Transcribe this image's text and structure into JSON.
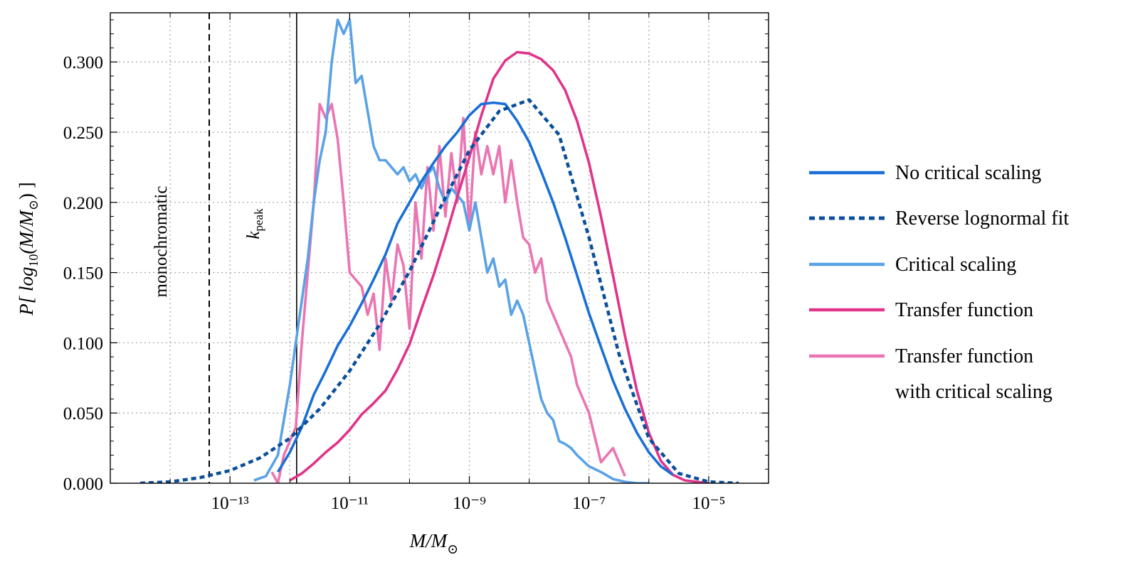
{
  "chart_data": {
    "type": "line",
    "xscale": "log",
    "xlim": [
      1e-15,
      0.0001
    ],
    "ylim": [
      0,
      0.335
    ],
    "grid": true,
    "xlabel": "M/M⊙",
    "ylabel": "P[ log10(M/M⊙) ]",
    "xticks": [
      1e-13,
      1e-11,
      1e-09,
      1e-07,
      1e-05
    ],
    "xtick_labels": [
      "10⁻¹³",
      "10⁻¹¹",
      "10⁻⁹",
      "10⁻⁷",
      "10⁻⁵"
    ],
    "yticks": [
      0,
      0.05,
      0.1,
      0.15,
      0.2,
      0.25,
      0.3
    ],
    "ytick_labels": [
      "0.000",
      "0.050",
      "0.100",
      "0.150",
      "0.200",
      "0.250",
      "0.300"
    ],
    "vlines": [
      {
        "name": "monochromatic",
        "x": 4.5e-14,
        "style": "dashed",
        "label": "monochromatic"
      },
      {
        "name": "k-peak",
        "x": 1.3e-12,
        "style": "solid",
        "label_main": "k",
        "label_sub": "peak"
      }
    ],
    "legend_position": "right",
    "series": [
      {
        "name": "No critical scaling",
        "color": "#1a6fd6",
        "dash": "solid",
        "log10_x": [
          -12.2,
          -12.0,
          -11.8,
          -11.6,
          -11.4,
          -11.2,
          -11.0,
          -10.8,
          -10.6,
          -10.4,
          -10.2,
          -10.0,
          -9.8,
          -9.6,
          -9.4,
          -9.2,
          -9.0,
          -8.8,
          -8.6,
          -8.4,
          -8.2,
          -8.0,
          -7.8,
          -7.6,
          -7.4,
          -7.2,
          -7.0,
          -6.8,
          -6.6,
          -6.4,
          -6.2,
          -6.0,
          -5.8,
          -5.6
        ],
        "y": [
          0.008,
          0.022,
          0.04,
          0.063,
          0.08,
          0.098,
          0.112,
          0.128,
          0.145,
          0.163,
          0.185,
          0.2,
          0.215,
          0.228,
          0.24,
          0.25,
          0.262,
          0.27,
          0.271,
          0.27,
          0.258,
          0.243,
          0.222,
          0.2,
          0.175,
          0.148,
          0.121,
          0.097,
          0.073,
          0.053,
          0.036,
          0.022,
          0.012,
          0.006
        ]
      },
      {
        "name": "Reverse lognormal fit",
        "color": "#0b4f9c",
        "dash": "dotted",
        "log10_x": [
          -14.5,
          -14.0,
          -13.5,
          -13.0,
          -12.5,
          -12.0,
          -11.5,
          -11.0,
          -10.5,
          -10.0,
          -9.5,
          -9.0,
          -8.5,
          -8.0,
          -7.5,
          -7.0,
          -6.5,
          -6.0,
          -5.5,
          -5.0,
          -4.5
        ],
        "y": [
          0.0,
          0.001,
          0.004,
          0.009,
          0.018,
          0.032,
          0.053,
          0.08,
          0.113,
          0.151,
          0.195,
          0.237,
          0.265,
          0.273,
          0.248,
          0.175,
          0.092,
          0.032,
          0.007,
          0.001,
          0.0
        ]
      },
      {
        "name": "Critical scaling",
        "color": "#5aa2e6",
        "dash": "solid",
        "log10_x": [
          -12.6,
          -12.4,
          -12.2,
          -12.0,
          -11.9,
          -11.8,
          -11.7,
          -11.6,
          -11.5,
          -11.4,
          -11.3,
          -11.2,
          -11.1,
          -11.0,
          -10.9,
          -10.8,
          -10.7,
          -10.6,
          -10.5,
          -10.4,
          -10.3,
          -10.2,
          -10.1,
          -10.0,
          -9.9,
          -9.8,
          -9.7,
          -9.6,
          -9.5,
          -9.4,
          -9.3,
          -9.2,
          -9.1,
          -9.0,
          -8.9,
          -8.8,
          -8.7,
          -8.6,
          -8.5,
          -8.4,
          -8.3,
          -8.2,
          -8.1,
          -8.0,
          -7.9,
          -7.8,
          -7.7,
          -7.6,
          -7.5,
          -7.4,
          -7.3,
          -7.2,
          -7.0,
          -6.8,
          -6.6,
          -6.4,
          -6.2,
          -6.0
        ],
        "y": [
          0.002,
          0.005,
          0.02,
          0.07,
          0.1,
          0.13,
          0.16,
          0.2,
          0.23,
          0.25,
          0.3,
          0.33,
          0.32,
          0.33,
          0.285,
          0.29,
          0.265,
          0.24,
          0.23,
          0.23,
          0.225,
          0.22,
          0.225,
          0.215,
          0.22,
          0.21,
          0.22,
          0.225,
          0.21,
          0.2,
          0.21,
          0.205,
          0.2,
          0.18,
          0.2,
          0.175,
          0.15,
          0.16,
          0.14,
          0.145,
          0.12,
          0.13,
          0.12,
          0.1,
          0.08,
          0.06,
          0.05,
          0.045,
          0.03,
          0.028,
          0.025,
          0.02,
          0.012,
          0.008,
          0.003,
          0.001,
          0.0,
          0.0
        ]
      },
      {
        "name": "Transfer function",
        "color": "#e0338a",
        "dash": "solid",
        "log10_x": [
          -12.0,
          -11.8,
          -11.6,
          -11.4,
          -11.2,
          -11.0,
          -10.8,
          -10.6,
          -10.4,
          -10.2,
          -10.0,
          -9.8,
          -9.6,
          -9.4,
          -9.2,
          -9.0,
          -8.8,
          -8.6,
          -8.4,
          -8.2,
          -8.0,
          -7.8,
          -7.6,
          -7.4,
          -7.2,
          -7.0,
          -6.8,
          -6.6,
          -6.4,
          -6.2,
          -6.0,
          -5.8,
          -5.6,
          -5.4,
          -5.2,
          -5.0
        ],
        "y": [
          0.002,
          0.007,
          0.014,
          0.022,
          0.029,
          0.038,
          0.049,
          0.057,
          0.066,
          0.081,
          0.099,
          0.124,
          0.148,
          0.175,
          0.204,
          0.232,
          0.262,
          0.288,
          0.301,
          0.307,
          0.306,
          0.302,
          0.294,
          0.28,
          0.258,
          0.228,
          0.19,
          0.148,
          0.105,
          0.066,
          0.036,
          0.016,
          0.006,
          0.002,
          0.001,
          0.0
        ]
      },
      {
        "name": "Transfer function with critical scaling",
        "color": "#ea75b2",
        "dash": "solid",
        "log10_x": [
          -12.3,
          -12.2,
          -12.1,
          -12.0,
          -11.9,
          -11.8,
          -11.7,
          -11.6,
          -11.5,
          -11.4,
          -11.3,
          -11.2,
          -11.1,
          -11.0,
          -10.9,
          -10.8,
          -10.7,
          -10.6,
          -10.5,
          -10.4,
          -10.3,
          -10.2,
          -10.1,
          -10.0,
          -9.9,
          -9.8,
          -9.7,
          -9.6,
          -9.5,
          -9.4,
          -9.3,
          -9.2,
          -9.1,
          -9.0,
          -8.9,
          -8.8,
          -8.7,
          -8.6,
          -8.5,
          -8.4,
          -8.3,
          -8.2,
          -8.1,
          -8.0,
          -7.9,
          -7.8,
          -7.7,
          -7.6,
          -7.5,
          -7.4,
          -7.3,
          -7.2,
          -7.0,
          -6.8,
          -6.6,
          -6.4
        ],
        "y": [
          0.008,
          0.0,
          0.02,
          0.03,
          0.04,
          0.1,
          0.15,
          0.2,
          0.27,
          0.26,
          0.27,
          0.245,
          0.2,
          0.15,
          0.145,
          0.14,
          0.12,
          0.135,
          0.095,
          0.16,
          0.13,
          0.17,
          0.155,
          0.11,
          0.2,
          0.16,
          0.225,
          0.18,
          0.24,
          0.19,
          0.235,
          0.2,
          0.26,
          0.18,
          0.25,
          0.22,
          0.24,
          0.22,
          0.24,
          0.2,
          0.23,
          0.2,
          0.175,
          0.17,
          0.15,
          0.16,
          0.13,
          0.12,
          0.11,
          0.1,
          0.09,
          0.07,
          0.05,
          0.015,
          0.025,
          0.005
        ]
      }
    ]
  },
  "legend": {
    "items": [
      {
        "label": "No critical scaling"
      },
      {
        "label": "Reverse lognormal fit"
      },
      {
        "label": "Critical scaling"
      },
      {
        "label": "Transfer function"
      },
      {
        "label": "Transfer function",
        "label2": "with critical scaling"
      }
    ]
  },
  "axes": {
    "x_label_main": "M/M",
    "x_label_sub": "⊙",
    "y_label_prefix": "P[ log",
    "y_label_sub10": "10",
    "y_label_mid": "(M/M",
    "y_label_sun": "⊙",
    "y_label_suffix": ") ]"
  }
}
